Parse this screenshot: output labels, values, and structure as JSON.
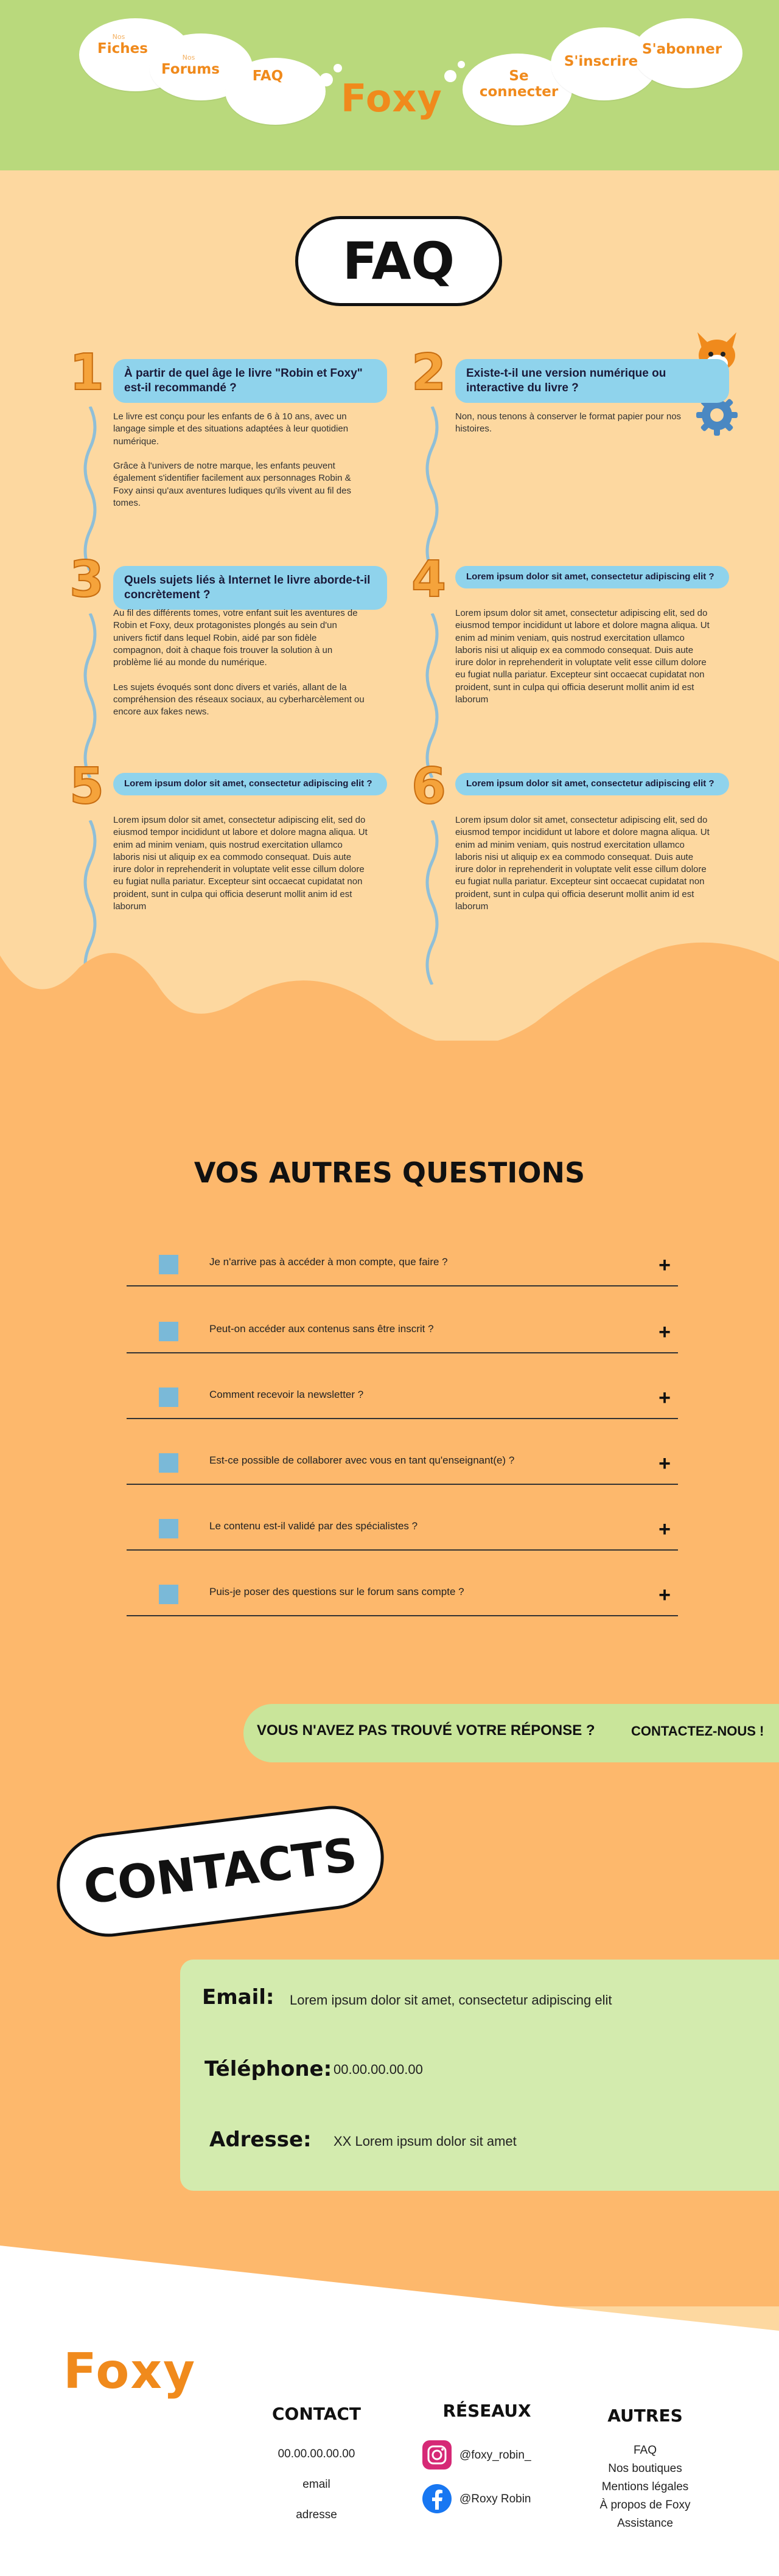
{
  "nav": {
    "fiches_label": "Fiches",
    "fiches_sub": "Nos",
    "forums_label": "Forums",
    "forums_sub": "Nos",
    "faq_label": "FAQ",
    "login_label": "Se connecter",
    "register_label": "S'inscrire",
    "subscribe_label": "S'abonner",
    "logo_text": "Foxy"
  },
  "faq": {
    "title": "FAQ",
    "items": [
      {
        "num": "1",
        "question": "À partir de quel âge le livre \"Robin et Foxy\" est-il recommandé ?",
        "answer": "Le livre est conçu pour les enfants de 6 à 10 ans, avec un langage simple et des situations adaptées à leur quotidien numérique.\n\nGrâce à l'univers de notre marque, les enfants peuvent également s'identifier facilement aux personnages Robin & Foxy ainsi qu'aux aventures ludiques qu'ils vivent au fil des tomes."
      },
      {
        "num": "2",
        "question": "Existe-t-il une version numérique ou interactive du livre ?",
        "answer": "Non, nous tenons à conserver le format papier pour nos histoires."
      },
      {
        "num": "3",
        "question": "Quels sujets liés à Internet le livre aborde-t-il concrètement ?",
        "answer": "Au fil des différents tomes, votre enfant suit les aventures de Robin et Foxy, deux protagonistes plongés au sein d'un univers fictif dans lequel Robin, aidé par son fidèle compagnon, doit à chaque fois trouver la solution à un problème lié au monde du numérique.\n\nLes sujets évoqués sont donc divers et variés, allant de la compréhension des réseaux sociaux, au cyberharcèlement ou encore aux fakes news."
      },
      {
        "num": "4",
        "question": "Lorem ipsum dolor sit amet, consectetur adipiscing elit ?",
        "answer": "Lorem ipsum dolor sit amet, consectetur adipiscing elit, sed do eiusmod tempor incididunt ut labore et dolore magna aliqua. Ut enim ad minim veniam, quis nostrud exercitation ullamco laboris nisi ut aliquip ex ea commodo consequat. Duis aute irure dolor in reprehenderit in voluptate velit esse cillum dolore eu fugiat nulla pariatur. Excepteur sint occaecat cupidatat non proident, sunt in culpa qui officia deserunt mollit anim id est laborum"
      },
      {
        "num": "5",
        "question": "Lorem ipsum dolor sit amet, consectetur adipiscing elit ?",
        "answer": "Lorem ipsum dolor sit amet, consectetur adipiscing elit, sed do eiusmod tempor incididunt ut labore et dolore magna aliqua. Ut enim ad minim veniam, quis nostrud exercitation ullamco laboris nisi ut aliquip ex ea commodo consequat. Duis aute irure dolor in reprehenderit in voluptate velit esse cillum dolore eu fugiat nulla pariatur. Excepteur sint occaecat cupidatat non proident, sunt in culpa qui officia deserunt mollit anim id est laborum"
      },
      {
        "num": "6",
        "question": "Lorem ipsum dolor sit amet, consectetur adipiscing elit ?",
        "answer": "Lorem ipsum dolor sit amet, consectetur adipiscing elit, sed do eiusmod tempor incididunt ut labore et dolore magna aliqua. Ut enim ad minim veniam, quis nostrud exercitation ullamco laboris nisi ut aliquip ex ea commodo consequat. Duis aute irure dolor in reprehenderit in voluptate velit esse cillum dolore eu fugiat nulla pariatur. Excepteur sint occaecat cupidatat non proident, sunt in culpa qui officia deserunt mollit anim id est laborum"
      }
    ]
  },
  "questions": {
    "title": "VOS AUTRES QUESTIONS",
    "plus": "+",
    "items": [
      "Je n'arrive pas à accéder à mon compte, que faire ?",
      "Peut-on accéder aux contenus sans être inscrit ?",
      "Comment recevoir la newsletter ?",
      "Est-ce possible de collaborer avec vous en tant qu'enseignant(e) ?",
      "Le contenu est-il validé par des spécialistes ?",
      "Puis-je poser des questions sur le forum sans compte ?"
    ]
  },
  "cta": {
    "text": "VOUS N'AVEZ PAS TROUVÉ VOTRE RÉPONSE ?",
    "link": "CONTACTEZ-NOUS !"
  },
  "contacts": {
    "title": "CONTACTS",
    "email_label": "Email:",
    "email_value": "Lorem ipsum dolor sit amet, consectetur adipiscing elit",
    "phone_label": "Téléphone:",
    "phone_value": "00.00.00.00.00",
    "address_label": "Adresse:",
    "address_value": "XX Lorem ipsum dolor sit amet"
  },
  "footer": {
    "logo_text": "Foxy",
    "contact_title": "CONTACT",
    "contact_phone": "00.00.00.00.00",
    "contact_email": "email",
    "contact_address": "adresse",
    "social_title": "RÉSEAUX",
    "instagram": "@foxy_robin_",
    "facebook": "@Roxy Robin",
    "other_title": "AUTRES",
    "other_links": [
      "FAQ",
      "Nos boutiques",
      "Mentions légales",
      "À propos de Foxy",
      "Assistance"
    ]
  },
  "colors": {
    "header_green": "#b9d97c",
    "orange_accent": "#f08a1c",
    "question_blue": "#8fd3ec",
    "peach": "#fdd8a0",
    "orange_bg": "#fdb86c"
  }
}
